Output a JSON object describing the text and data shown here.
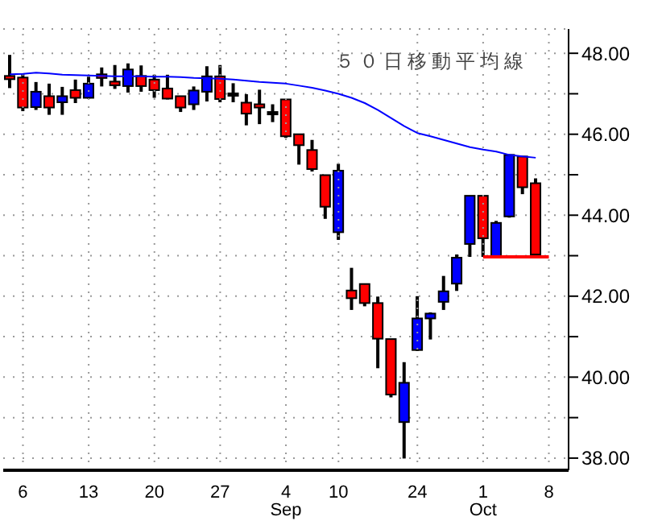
{
  "chart_data": {
    "type": "candlestick",
    "categories": [
      null,
      "6",
      null,
      null,
      null,
      null,
      "13",
      null,
      null,
      null,
      null,
      "20",
      null,
      null,
      null,
      null,
      "27",
      null,
      null,
      null,
      null,
      "4\nSep",
      null,
      null,
      null,
      "10",
      null,
      null,
      null,
      null,
      null,
      "24",
      null,
      null,
      null,
      null,
      "1\nOct",
      null,
      null,
      null,
      null,
      "8",
      null
    ],
    "ohlc": [
      [
        47.44,
        47.96,
        47.14,
        47.36
      ],
      [
        47.4,
        47.5,
        46.57,
        46.66
      ],
      [
        46.67,
        47.29,
        46.6,
        47.05
      ],
      [
        46.94,
        47.25,
        46.48,
        46.66
      ],
      [
        46.79,
        47.17,
        46.48,
        46.94
      ],
      [
        47.09,
        47.35,
        46.77,
        46.9
      ],
      [
        46.9,
        47.42,
        46.88,
        47.25
      ],
      [
        47.48,
        47.65,
        47.18,
        47.39
      ],
      [
        47.3,
        47.71,
        47.12,
        47.21
      ],
      [
        47.19,
        47.75,
        47.03,
        47.6
      ],
      [
        47.44,
        47.7,
        47.05,
        47.19
      ],
      [
        47.35,
        47.47,
        46.9,
        47.09
      ],
      [
        47.13,
        47.47,
        46.86,
        46.88
      ],
      [
        46.94,
        46.94,
        46.55,
        46.66
      ],
      [
        46.74,
        47.18,
        46.6,
        47.08
      ],
      [
        47.05,
        47.68,
        46.81,
        47.43
      ],
      [
        47.43,
        47.71,
        46.79,
        46.87
      ],
      [
        47.01,
        47.26,
        46.79,
        47.01
      ],
      [
        46.78,
        46.99,
        46.22,
        46.51
      ],
      [
        46.74,
        47.1,
        46.25,
        46.66
      ],
      [
        46.55,
        46.74,
        46.3,
        46.55
      ],
      [
        46.86,
        46.86,
        45.91,
        45.95
      ],
      [
        46.0,
        46.0,
        45.25,
        45.73
      ],
      [
        45.61,
        45.86,
        45.08,
        45.14
      ],
      [
        44.99,
        44.99,
        43.91,
        44.21
      ],
      [
        43.58,
        45.27,
        43.39,
        45.1
      ],
      [
        42.14,
        42.7,
        41.66,
        41.95
      ],
      [
        42.3,
        42.3,
        41.75,
        41.83
      ],
      [
        41.83,
        41.99,
        40.22,
        40.95
      ],
      [
        40.94,
        40.94,
        39.5,
        39.57
      ],
      [
        38.89,
        40.37,
        37.99,
        39.86
      ],
      [
        40.67,
        42.0,
        40.65,
        41.45
      ],
      [
        41.45,
        41.6,
        40.93,
        41.57
      ],
      [
        41.86,
        42.5,
        41.66,
        42.12
      ],
      [
        42.31,
        43.03,
        42.13,
        42.95
      ],
      [
        43.29,
        44.48,
        42.97,
        44.48
      ],
      [
        44.48,
        44.48,
        42.97,
        43.43
      ],
      [
        42.97,
        43.86,
        42.95,
        43.81
      ],
      [
        43.97,
        45.49,
        43.94,
        45.49
      ],
      [
        45.45,
        45.45,
        44.52,
        44.69
      ],
      [
        44.79,
        44.91,
        42.97,
        43.03
      ],
      null,
      null
    ],
    "colors": [
      "#ff0000",
      "#ff0000",
      "#0000ff",
      "#ff0000",
      "#0000ff",
      "#ff0000",
      "#0000ff",
      "#ff0000",
      "#ff0000",
      "#0000ff",
      "#ff0000",
      "#ff0000",
      "#ff0000",
      "#ff0000",
      "#0000ff",
      "#0000ff",
      "#ff0000",
      "#000000",
      "#ff0000",
      "#ff0000",
      "#000000",
      "#ff0000",
      "#ff0000",
      "#ff0000",
      "#ff0000",
      "#0000ff",
      "#ff0000",
      "#ff0000",
      "#ff0000",
      "#ff0000",
      "#0000ff",
      "#0000ff",
      "#0000ff",
      "#0000ff",
      "#0000ff",
      "#0000ff",
      "#ff0000",
      "#0000ff",
      "#0000ff",
      "#ff0000",
      "#ff0000",
      null,
      null
    ],
    "series": [
      {
        "type": "line",
        "name": "５０日移動平均線",
        "color": "#0000ff",
        "values": [
          47.48,
          47.49,
          47.52,
          47.5,
          47.47,
          47.46,
          47.45,
          47.44,
          47.43,
          47.43,
          47.43,
          47.42,
          47.42,
          47.41,
          47.39,
          47.38,
          47.37,
          47.35,
          47.32,
          47.29,
          47.27,
          47.25,
          47.2,
          47.15,
          47.08,
          47.0,
          46.9,
          46.77,
          46.6,
          46.4,
          46.2,
          46.03,
          45.95,
          45.86,
          45.77,
          45.68,
          45.62,
          45.57,
          45.49,
          45.45,
          45.42,
          null,
          null
        ]
      },
      {
        "type": "line",
        "color": "#ff0000",
        "values": [
          null,
          null,
          null,
          null,
          null,
          null,
          null,
          null,
          null,
          null,
          null,
          null,
          null,
          null,
          null,
          null,
          null,
          null,
          null,
          null,
          null,
          null,
          null,
          null,
          null,
          null,
          null,
          null,
          null,
          null,
          null,
          null,
          null,
          null,
          null,
          null,
          42.97,
          42.97,
          42.97,
          42.97,
          42.97,
          42.97,
          null
        ]
      }
    ],
    "ylim": [
      37.7,
      48.6
    ],
    "yticks": [
      {
        "value": 38,
        "label": "38.00"
      },
      {
        "value": 39,
        "label": null
      },
      {
        "value": 40,
        "label": "40.00"
      },
      {
        "value": 41,
        "label": null
      },
      {
        "value": 42,
        "label": "42.00"
      },
      {
        "value": 43,
        "label": null
      },
      {
        "value": 44,
        "label": "44.00"
      },
      {
        "value": 45,
        "label": null
      },
      {
        "value": 46,
        "label": "46.00"
      },
      {
        "value": 47,
        "label": null
      },
      {
        "value": 48,
        "label": "48.00"
      }
    ],
    "grid": true
  }
}
